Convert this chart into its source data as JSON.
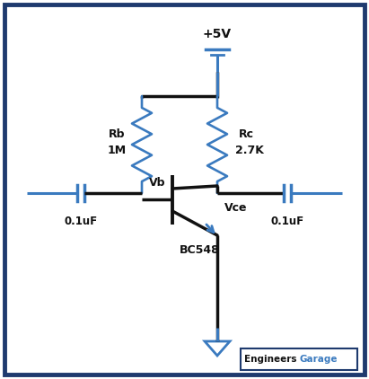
{
  "bg_color": "#ffffff",
  "border_color": "#1e3a6e",
  "line_color": "#3a7abf",
  "black_color": "#111111",
  "text_color": "#111111",
  "vcc_label": "+5V",
  "rb_label": "Rb",
  "rb_val": "1M",
  "rc_label": "Rc",
  "rc_val": "2.7K",
  "vb_label": "Vb",
  "vce_label": "Vce",
  "transistor_label": "BC548",
  "cap_left_label": "0.1uF",
  "cap_right_label": "0.1uF",
  "eg_text1": "Engineers",
  "eg_text2": "Garage"
}
